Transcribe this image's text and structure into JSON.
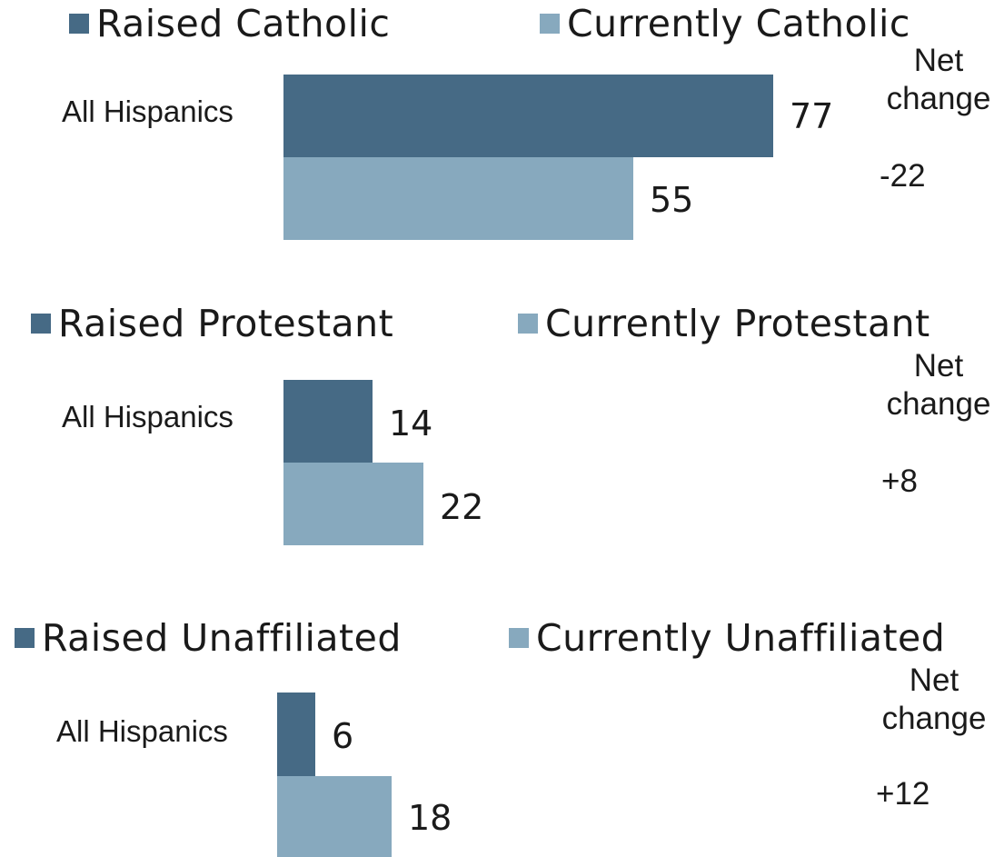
{
  "colors": {
    "raised": "#466a85",
    "currently": "#87a9be"
  },
  "chart_data": [
    {
      "type": "bar",
      "orientation": "horizontal",
      "categories": [
        "All Hispanics"
      ],
      "series": [
        {
          "name": "Raised Catholic",
          "values": [
            77
          ]
        },
        {
          "name": "Currently Catholic",
          "values": [
            55
          ]
        }
      ],
      "net_change_label": [
        "Net",
        "change"
      ],
      "net_change": "-22",
      "xlim": [
        0,
        100
      ],
      "legend": "top"
    },
    {
      "type": "bar",
      "orientation": "horizontal",
      "categories": [
        "All Hispanics"
      ],
      "series": [
        {
          "name": "Raised Protestant",
          "values": [
            14
          ]
        },
        {
          "name": "Currently Protestant",
          "values": [
            22
          ]
        }
      ],
      "net_change_label": [
        "Net",
        "change"
      ],
      "net_change": "+8",
      "xlim": [
        0,
        100
      ],
      "legend": "top"
    },
    {
      "type": "bar",
      "orientation": "horizontal",
      "categories": [
        "All Hispanics"
      ],
      "series": [
        {
          "name": "Raised Unaffiliated",
          "values": [
            6
          ]
        },
        {
          "name": "Currently Unaffiliated",
          "values": [
            18
          ]
        }
      ],
      "net_change_label": [
        "Net",
        "change"
      ],
      "net_change": "+12",
      "xlim": [
        0,
        100
      ],
      "legend": "top"
    }
  ]
}
